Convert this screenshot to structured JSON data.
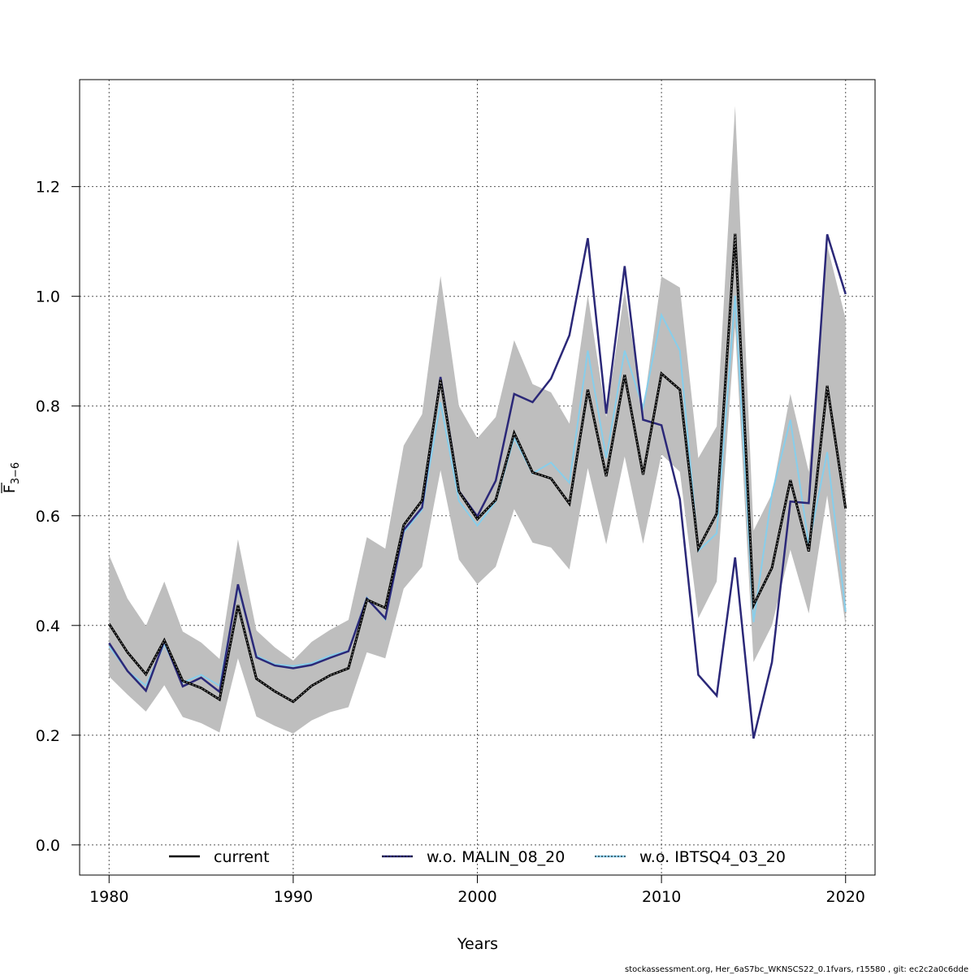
{
  "chart_data": {
    "type": "line",
    "xlabel": "Years",
    "ylabel": {
      "main": "F",
      "sub": "3−6"
    },
    "xlim": [
      1978.4,
      2021.6
    ],
    "ylim": [
      -0.055,
      1.395
    ],
    "xticks": [
      "1980",
      "1990",
      "2000",
      "2010",
      "2020"
    ],
    "yticks": [
      "0.0",
      "0.2",
      "0.4",
      "0.6",
      "0.8",
      "1.0",
      "1.2"
    ],
    "grid": true,
    "legend_position": "bottom",
    "x": [
      1980,
      1981,
      1982,
      1983,
      1984,
      1985,
      1986,
      1987,
      1988,
      1989,
      1990,
      1991,
      1992,
      1993,
      1994,
      1995,
      1996,
      1997,
      1998,
      1999,
      2000,
      2001,
      2002,
      2003,
      2004,
      2005,
      2006,
      2007,
      2008,
      2009,
      2010,
      2011,
      2012,
      2013,
      2014,
      2015,
      2016,
      2017,
      2018,
      2019,
      2020
    ],
    "band": {
      "color": "#bebebe",
      "lower": [
        0.307,
        0.274,
        0.243,
        0.291,
        0.233,
        0.222,
        0.205,
        0.34,
        0.234,
        0.217,
        0.203,
        0.227,
        0.242,
        0.251,
        0.351,
        0.34,
        0.467,
        0.507,
        0.683,
        0.52,
        0.475,
        0.507,
        0.612,
        0.551,
        0.542,
        0.502,
        0.687,
        0.548,
        0.708,
        0.549,
        0.712,
        0.68,
        0.413,
        0.48,
        0.944,
        0.333,
        0.4,
        0.538,
        0.422,
        0.637,
        0.4
      ],
      "upper": [
        0.528,
        0.449,
        0.399,
        0.48,
        0.389,
        0.369,
        0.339,
        0.557,
        0.391,
        0.36,
        0.336,
        0.37,
        0.392,
        0.41,
        0.561,
        0.54,
        0.728,
        0.785,
        1.037,
        0.8,
        0.741,
        0.78,
        0.92,
        0.84,
        0.825,
        0.768,
        1.002,
        0.78,
        1.011,
        0.791,
        1.036,
        1.016,
        0.705,
        0.763,
        1.347,
        0.573,
        0.64,
        0.822,
        0.68,
        1.093,
        0.959
      ]
    },
    "series": [
      {
        "name": "current",
        "color": "#000000",
        "values": [
          0.403,
          0.351,
          0.311,
          0.373,
          0.299,
          0.286,
          0.265,
          0.437,
          0.303,
          0.28,
          0.261,
          0.29,
          0.309,
          0.322,
          0.447,
          0.432,
          0.583,
          0.628,
          0.848,
          0.644,
          0.594,
          0.629,
          0.751,
          0.679,
          0.668,
          0.622,
          0.83,
          0.672,
          0.857,
          0.675,
          0.859,
          0.83,
          0.54,
          0.604,
          1.114,
          0.437,
          0.505,
          0.665,
          0.535,
          0.837,
          0.613
        ]
      },
      {
        "name": "w.o. MALIN_08_20",
        "color": "#2b2878",
        "values": [
          0.368,
          0.317,
          0.281,
          0.372,
          0.289,
          0.305,
          0.279,
          0.475,
          0.342,
          0.327,
          0.322,
          0.328,
          0.341,
          0.353,
          0.449,
          0.413,
          0.574,
          0.615,
          0.853,
          0.645,
          0.599,
          0.664,
          0.822,
          0.807,
          0.85,
          0.929,
          1.106,
          0.786,
          1.055,
          0.775,
          0.765,
          0.63,
          0.31,
          0.272,
          0.524,
          0.194,
          0.333,
          0.626,
          0.623,
          1.113,
          1.004
        ]
      },
      {
        "name": "w.o. IBTSQ4_03_20",
        "color": "#87ceeb",
        "values": [
          0.362,
          0.317,
          0.29,
          0.366,
          0.296,
          0.31,
          0.29,
          0.47,
          0.345,
          0.329,
          0.326,
          0.331,
          0.345,
          0.354,
          0.451,
          0.411,
          0.57,
          0.611,
          0.807,
          0.627,
          0.582,
          0.626,
          0.742,
          0.677,
          0.697,
          0.66,
          0.901,
          0.705,
          0.901,
          0.797,
          0.966,
          0.901,
          0.536,
          0.568,
          1.001,
          0.406,
          0.64,
          0.775,
          0.547,
          0.716,
          0.425
        ]
      }
    ]
  },
  "footer": "stockassessment.org, Her_6aS7bc_WKNSCS22_0.1fvars, r15580 , git: ec2c2a0c6dde"
}
